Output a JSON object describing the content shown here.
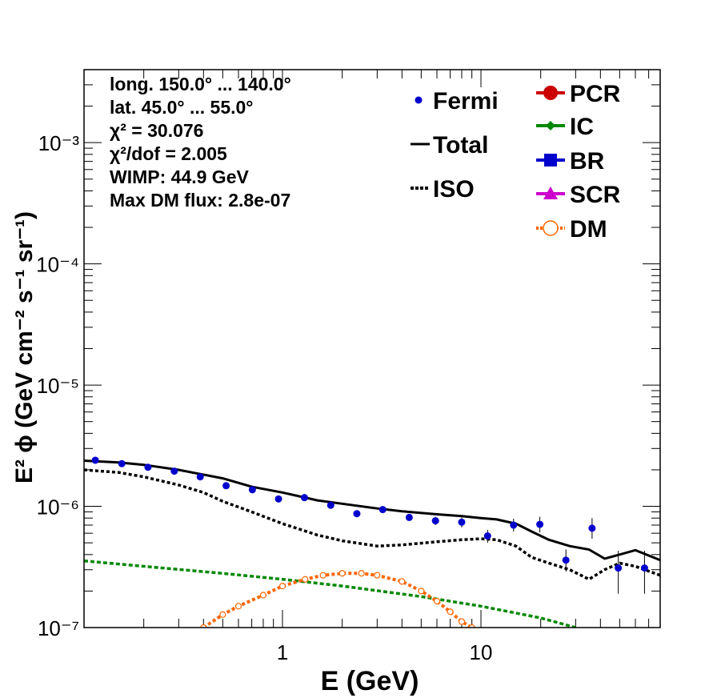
{
  "chart_data": {
    "type": "line",
    "xlabel": "E (GeV)",
    "ylabel": "E² ϕ (GeV cm⁻² s⁻¹ sr⁻¹)",
    "x_scale": "log",
    "y_scale": "log",
    "xlim": [
      0.1,
      80
    ],
    "ylim": [
      1e-07,
      0.004
    ],
    "x_tick_labels": [
      "1",
      "10"
    ],
    "y_tick_labels": [
      "10⁻⁷",
      "10⁻⁶",
      "10⁻⁵",
      "10⁻⁴",
      "10⁻³"
    ],
    "info_lines": [
      "long. 150.0° ... 140.0°",
      "lat. 45.0° ... 55.0°",
      "χ² = 30.076",
      "χ²/dof = 2.005",
      "WIMP: 44.9 GeV",
      "Max DM flux: 2.8e-07"
    ],
    "legend": [
      {
        "label": "Fermi",
        "color": "#0000cc",
        "style": "points"
      },
      {
        "label": "Total",
        "color": "#000000",
        "style": "solid"
      },
      {
        "label": "ISO",
        "color": "#000000",
        "style": "dotted"
      },
      {
        "label": "PCR",
        "color": "#cc0000",
        "style": "circle-line"
      },
      {
        "label": "IC",
        "color": "#008800",
        "style": "dot-line"
      },
      {
        "label": "BR",
        "color": "#0000cc",
        "style": "square-line"
      },
      {
        "label": "SCR",
        "color": "#cc00cc",
        "style": "triangle-line"
      },
      {
        "label": "DM",
        "color": "#ff6600",
        "style": "open-circle-dotted"
      }
    ],
    "series": [
      {
        "name": "Fermi",
        "color": "#0000cc",
        "x": [
          0.114,
          0.155,
          0.21,
          0.285,
          0.385,
          0.52,
          0.705,
          0.955,
          1.29,
          1.75,
          2.37,
          3.2,
          4.35,
          5.9,
          8.0,
          10.8,
          14.6,
          19.8,
          26.8,
          36.3,
          49.2,
          66.7
        ],
        "y": [
          2.4e-06,
          2.25e-06,
          2.1e-06,
          1.95e-06,
          1.75e-06,
          1.48e-06,
          1.37e-06,
          1.15e-06,
          1.18e-06,
          1.02e-06,
          8.7e-07,
          9.4e-07,
          8.1e-07,
          7.6e-07,
          7.4e-07,
          5.7e-07,
          7e-07,
          7.1e-07,
          3.6e-07,
          6.6e-07,
          3.1e-07,
          3.1e-07
        ],
        "y_low": [
          2.3e-06,
          2.15e-06,
          2e-06,
          1.87e-06,
          1.68e-06,
          1.42e-06,
          1.31e-06,
          1.1e-06,
          1.12e-06,
          9.7e-07,
          8.2e-07,
          8.9e-07,
          7.6e-07,
          7e-07,
          6.7e-07,
          5e-07,
          6.2e-07,
          6.1e-07,
          2.9e-07,
          5.4e-07,
          1.9e-07,
          1.9e-07
        ],
        "y_high": [
          2.5e-06,
          2.35e-06,
          2.2e-06,
          2.03e-06,
          1.82e-06,
          1.54e-06,
          1.43e-06,
          1.2e-06,
          1.24e-06,
          1.07e-06,
          9.2e-07,
          9.9e-07,
          8.6e-07,
          8.2e-07,
          8.1e-07,
          6.4e-07,
          7.9e-07,
          8.2e-07,
          4.4e-07,
          8e-07,
          4.3e-07,
          4.3e-07
        ]
      },
      {
        "name": "Total",
        "color": "#000000",
        "x": [
          0.1,
          0.15,
          0.2,
          0.3,
          0.5,
          0.7,
          1.0,
          1.5,
          2.0,
          3.0,
          4.0,
          6.0,
          8.0,
          10.0,
          12.0,
          15.0,
          18.0,
          22.0,
          28.0,
          35.0,
          42.0,
          50.0,
          60.0,
          80.0
        ],
        "y": [
          2.38e-06,
          2.3e-06,
          2.2e-06,
          2e-06,
          1.7e-06,
          1.45e-06,
          1.3e-06,
          1.12e-06,
          1.05e-06,
          9.6e-07,
          9.1e-07,
          8.6e-07,
          8.3e-07,
          8e-07,
          7.8e-07,
          7.2e-07,
          6.2e-07,
          5.3e-07,
          4.7e-07,
          4.4e-07,
          3.7e-07,
          4e-07,
          4.35e-07,
          3.6e-07
        ]
      },
      {
        "name": "ISO",
        "color": "#000000",
        "x": [
          0.1,
          0.15,
          0.2,
          0.3,
          0.4,
          0.5,
          0.7,
          1.0,
          1.5,
          2.0,
          3.0,
          4.0,
          6.0,
          8.0,
          10.0,
          12.0,
          15.0,
          18.0,
          22.0,
          28.0,
          35.0,
          42.0,
          50.0,
          60.0,
          80.0
        ],
        "y": [
          2e-06,
          1.9e-06,
          1.75e-06,
          1.5e-06,
          1.3e-06,
          1.1e-06,
          9e-07,
          7.2e-07,
          5.8e-07,
          5.2e-07,
          4.7e-07,
          4.8e-07,
          5.1e-07,
          5.3e-07,
          5.4e-07,
          5.3e-07,
          4.7e-07,
          3.8e-07,
          3.4e-07,
          3e-07,
          2.5e-07,
          3e-07,
          3.4e-07,
          3.2e-07,
          2.7e-07
        ]
      },
      {
        "name": "IC",
        "color": "#008800",
        "x": [
          0.1,
          0.2,
          0.5,
          1.0,
          2.0,
          5.0,
          10.0,
          20.0,
          30.0
        ],
        "y": [
          3.55e-07,
          3.2e-07,
          2.8e-07,
          2.5e-07,
          2.2e-07,
          1.8e-07,
          1.5e-07,
          1.2e-07,
          1e-07
        ]
      },
      {
        "name": "DM",
        "color": "#ff6600",
        "x": [
          0.4,
          0.5,
          0.6,
          0.8,
          1.0,
          1.3,
          1.6,
          2.0,
          2.5,
          3.0,
          4.0,
          5.0,
          6.0,
          7.0,
          8.0,
          9.0
        ],
        "y": [
          1e-07,
          1.28e-07,
          1.5e-07,
          1.85e-07,
          2.2e-07,
          2.5e-07,
          2.7e-07,
          2.8e-07,
          2.8e-07,
          2.7e-07,
          2.4e-07,
          2e-07,
          1.65e-07,
          1.35e-07,
          1.12e-07,
          1e-07
        ]
      }
    ]
  }
}
